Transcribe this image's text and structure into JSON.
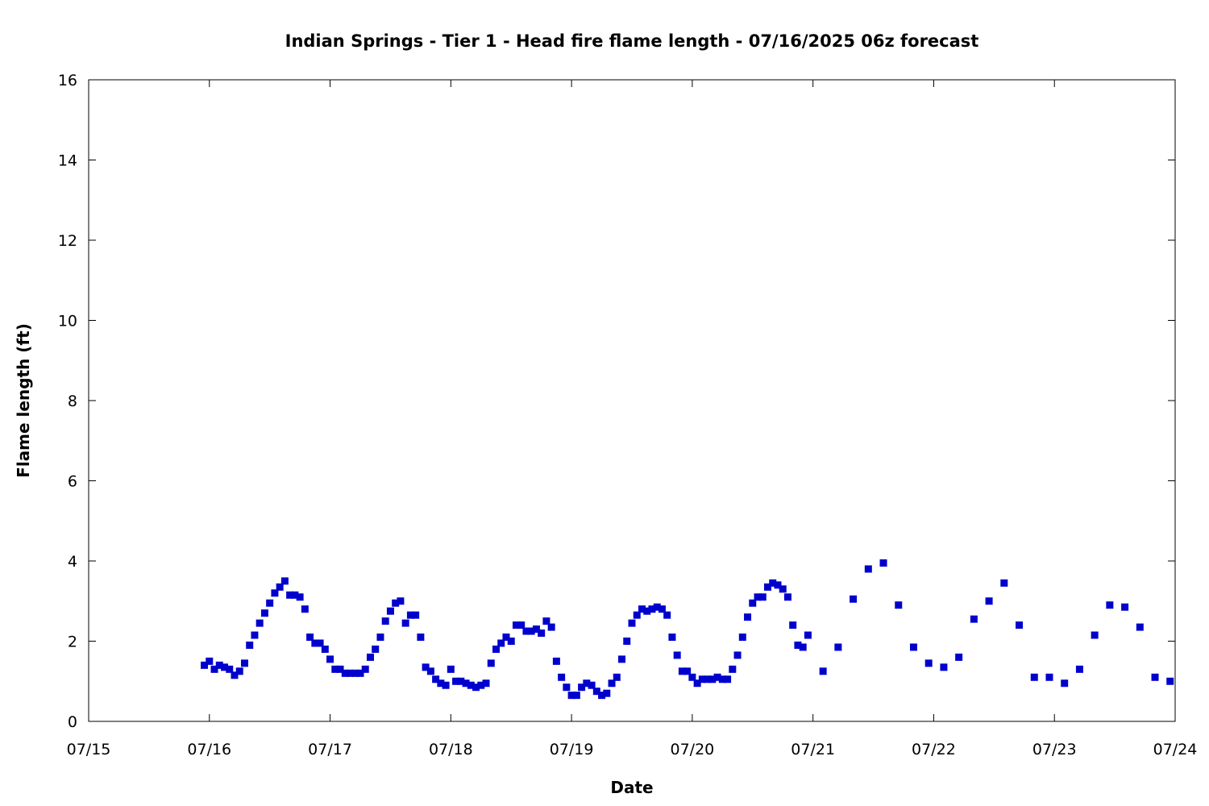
{
  "chart_data": {
    "type": "scatter",
    "title": "Indian Springs - Tier 1 - Head fire flame length - 07/16/2025 06z forecast",
    "xlabel": "Date",
    "ylabel": "Flame length (ft)",
    "x_ticks": [
      "07/15",
      "07/16",
      "07/17",
      "07/18",
      "07/19",
      "07/20",
      "07/21",
      "07/22",
      "07/23",
      "07/24"
    ],
    "y_ticks": [
      "0",
      "2",
      "4",
      "6",
      "8",
      "10",
      "12",
      "14",
      "16"
    ],
    "ylim": [
      0,
      16
    ],
    "xlim": [
      "2025-07-15 00:00",
      "2025-07-24 00:00"
    ],
    "grid": false,
    "legend": "none",
    "marker_color": "#0000cc",
    "points": [
      [
        "2025-07-15 23:00",
        1.4
      ],
      [
        "2025-07-16 00:00",
        1.5
      ],
      [
        "2025-07-16 01:00",
        1.3
      ],
      [
        "2025-07-16 02:00",
        1.4
      ],
      [
        "2025-07-16 03:00",
        1.35
      ],
      [
        "2025-07-16 04:00",
        1.3
      ],
      [
        "2025-07-16 05:00",
        1.15
      ],
      [
        "2025-07-16 06:00",
        1.25
      ],
      [
        "2025-07-16 07:00",
        1.45
      ],
      [
        "2025-07-16 08:00",
        1.9
      ],
      [
        "2025-07-16 09:00",
        2.15
      ],
      [
        "2025-07-16 10:00",
        2.45
      ],
      [
        "2025-07-16 11:00",
        2.7
      ],
      [
        "2025-07-16 12:00",
        2.95
      ],
      [
        "2025-07-16 13:00",
        3.2
      ],
      [
        "2025-07-16 14:00",
        3.35
      ],
      [
        "2025-07-16 15:00",
        3.5
      ],
      [
        "2025-07-16 16:00",
        3.15
      ],
      [
        "2025-07-16 17:00",
        3.15
      ],
      [
        "2025-07-16 18:00",
        3.1
      ],
      [
        "2025-07-16 19:00",
        2.8
      ],
      [
        "2025-07-16 20:00",
        2.1
      ],
      [
        "2025-07-16 21:00",
        1.95
      ],
      [
        "2025-07-16 22:00",
        1.95
      ],
      [
        "2025-07-16 23:00",
        1.8
      ],
      [
        "2025-07-17 00:00",
        1.55
      ],
      [
        "2025-07-17 01:00",
        1.3
      ],
      [
        "2025-07-17 02:00",
        1.3
      ],
      [
        "2025-07-17 03:00",
        1.2
      ],
      [
        "2025-07-17 04:00",
        1.2
      ],
      [
        "2025-07-17 05:00",
        1.2
      ],
      [
        "2025-07-17 06:00",
        1.2
      ],
      [
        "2025-07-17 07:00",
        1.3
      ],
      [
        "2025-07-17 08:00",
        1.6
      ],
      [
        "2025-07-17 09:00",
        1.8
      ],
      [
        "2025-07-17 10:00",
        2.1
      ],
      [
        "2025-07-17 11:00",
        2.5
      ],
      [
        "2025-07-17 12:00",
        2.75
      ],
      [
        "2025-07-17 13:00",
        2.95
      ],
      [
        "2025-07-17 14:00",
        3.0
      ],
      [
        "2025-07-17 15:00",
        2.45
      ],
      [
        "2025-07-17 16:00",
        2.65
      ],
      [
        "2025-07-17 17:00",
        2.65
      ],
      [
        "2025-07-17 18:00",
        2.1
      ],
      [
        "2025-07-17 19:00",
        1.35
      ],
      [
        "2025-07-17 20:00",
        1.25
      ],
      [
        "2025-07-17 21:00",
        1.05
      ],
      [
        "2025-07-17 22:00",
        0.95
      ],
      [
        "2025-07-17 23:00",
        0.9
      ],
      [
        "2025-07-18 00:00",
        1.3
      ],
      [
        "2025-07-18 01:00",
        1.0
      ],
      [
        "2025-07-18 02:00",
        1.0
      ],
      [
        "2025-07-18 03:00",
        0.95
      ],
      [
        "2025-07-18 04:00",
        0.9
      ],
      [
        "2025-07-18 05:00",
        0.85
      ],
      [
        "2025-07-18 06:00",
        0.9
      ],
      [
        "2025-07-18 07:00",
        0.95
      ],
      [
        "2025-07-18 08:00",
        1.45
      ],
      [
        "2025-07-18 09:00",
        1.8
      ],
      [
        "2025-07-18 10:00",
        1.95
      ],
      [
        "2025-07-18 11:00",
        2.1
      ],
      [
        "2025-07-18 12:00",
        2.0
      ],
      [
        "2025-07-18 13:00",
        2.4
      ],
      [
        "2025-07-18 14:00",
        2.4
      ],
      [
        "2025-07-18 15:00",
        2.25
      ],
      [
        "2025-07-18 16:00",
        2.25
      ],
      [
        "2025-07-18 17:00",
        2.3
      ],
      [
        "2025-07-18 18:00",
        2.2
      ],
      [
        "2025-07-18 19:00",
        2.5
      ],
      [
        "2025-07-18 20:00",
        2.35
      ],
      [
        "2025-07-18 21:00",
        1.5
      ],
      [
        "2025-07-18 22:00",
        1.1
      ],
      [
        "2025-07-18 23:00",
        0.85
      ],
      [
        "2025-07-19 00:00",
        0.65
      ],
      [
        "2025-07-19 01:00",
        0.65
      ],
      [
        "2025-07-19 02:00",
        0.85
      ],
      [
        "2025-07-19 03:00",
        0.95
      ],
      [
        "2025-07-19 04:00",
        0.9
      ],
      [
        "2025-07-19 05:00",
        0.75
      ],
      [
        "2025-07-19 06:00",
        0.65
      ],
      [
        "2025-07-19 07:00",
        0.7
      ],
      [
        "2025-07-19 08:00",
        0.95
      ],
      [
        "2025-07-19 09:00",
        1.1
      ],
      [
        "2025-07-19 10:00",
        1.55
      ],
      [
        "2025-07-19 11:00",
        2.0
      ],
      [
        "2025-07-19 12:00",
        2.45
      ],
      [
        "2025-07-19 13:00",
        2.65
      ],
      [
        "2025-07-19 14:00",
        2.8
      ],
      [
        "2025-07-19 15:00",
        2.75
      ],
      [
        "2025-07-19 16:00",
        2.8
      ],
      [
        "2025-07-19 17:00",
        2.85
      ],
      [
        "2025-07-19 18:00",
        2.8
      ],
      [
        "2025-07-19 19:00",
        2.65
      ],
      [
        "2025-07-19 20:00",
        2.1
      ],
      [
        "2025-07-19 21:00",
        1.65
      ],
      [
        "2025-07-19 22:00",
        1.25
      ],
      [
        "2025-07-19 23:00",
        1.25
      ],
      [
        "2025-07-20 00:00",
        1.1
      ],
      [
        "2025-07-20 01:00",
        0.95
      ],
      [
        "2025-07-20 02:00",
        1.05
      ],
      [
        "2025-07-20 03:00",
        1.05
      ],
      [
        "2025-07-20 04:00",
        1.05
      ],
      [
        "2025-07-20 05:00",
        1.1
      ],
      [
        "2025-07-20 06:00",
        1.05
      ],
      [
        "2025-07-20 07:00",
        1.05
      ],
      [
        "2025-07-20 08:00",
        1.3
      ],
      [
        "2025-07-20 09:00",
        1.65
      ],
      [
        "2025-07-20 10:00",
        2.1
      ],
      [
        "2025-07-20 11:00",
        2.6
      ],
      [
        "2025-07-20 12:00",
        2.95
      ],
      [
        "2025-07-20 13:00",
        3.1
      ],
      [
        "2025-07-20 14:00",
        3.1
      ],
      [
        "2025-07-20 15:00",
        3.35
      ],
      [
        "2025-07-20 16:00",
        3.45
      ],
      [
        "2025-07-20 17:00",
        3.4
      ],
      [
        "2025-07-20 18:00",
        3.3
      ],
      [
        "2025-07-20 19:00",
        3.1
      ],
      [
        "2025-07-20 20:00",
        2.4
      ],
      [
        "2025-07-20 21:00",
        1.9
      ],
      [
        "2025-07-20 22:00",
        1.85
      ],
      [
        "2025-07-20 23:00",
        2.15
      ],
      [
        "2025-07-21 02:00",
        1.25
      ],
      [
        "2025-07-21 05:00",
        1.85
      ],
      [
        "2025-07-21 08:00",
        3.05
      ],
      [
        "2025-07-21 11:00",
        3.8
      ],
      [
        "2025-07-21 14:00",
        3.95
      ],
      [
        "2025-07-21 17:00",
        2.9
      ],
      [
        "2025-07-21 20:00",
        1.85
      ],
      [
        "2025-07-21 23:00",
        1.45
      ],
      [
        "2025-07-22 02:00",
        1.35
      ],
      [
        "2025-07-22 05:00",
        1.6
      ],
      [
        "2025-07-22 08:00",
        2.55
      ],
      [
        "2025-07-22 11:00",
        3.0
      ],
      [
        "2025-07-22 14:00",
        3.45
      ],
      [
        "2025-07-22 17:00",
        2.4
      ],
      [
        "2025-07-22 20:00",
        1.1
      ],
      [
        "2025-07-22 23:00",
        1.1
      ],
      [
        "2025-07-23 02:00",
        0.95
      ],
      [
        "2025-07-23 05:00",
        1.3
      ],
      [
        "2025-07-23 08:00",
        2.15
      ],
      [
        "2025-07-23 11:00",
        2.9
      ],
      [
        "2025-07-23 14:00",
        2.85
      ],
      [
        "2025-07-23 17:00",
        2.35
      ],
      [
        "2025-07-23 20:00",
        1.1
      ],
      [
        "2025-07-23 23:00",
        1.0
      ]
    ]
  }
}
